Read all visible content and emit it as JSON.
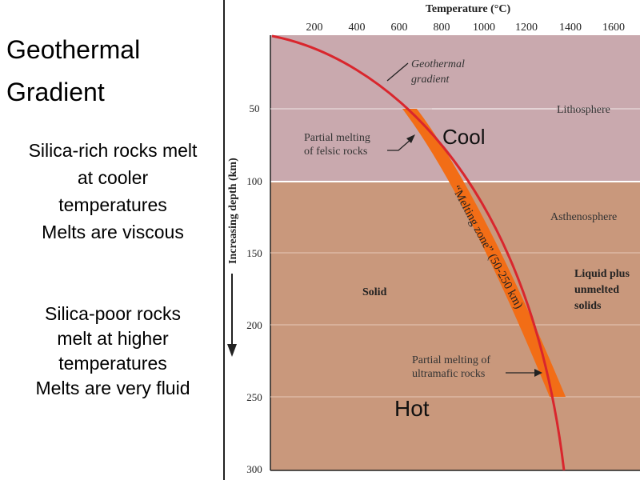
{
  "slide": {
    "title_line1": "Geothermal",
    "title_line2": "Gradient",
    "para1": [
      "Silica-rich rocks melt",
      "at cooler",
      "temperatures",
      "Melts are viscous"
    ],
    "para2": [
      "Silica-poor rocks",
      "melt at higher",
      "temperatures",
      "Melts are very fluid"
    ]
  },
  "diagram": {
    "x_axis_title": "Temperature (°C)",
    "x_ticks": [
      "200",
      "400",
      "600",
      "800",
      "1000",
      "1200",
      "1400",
      "1600"
    ],
    "y_axis_title": "Increasing depth (km)",
    "y_ticks": [
      "50",
      "100",
      "150",
      "200",
      "250",
      "300"
    ],
    "labels": {
      "geothermal_gradient_1": "Geothermal",
      "geothermal_gradient_2": "gradient",
      "lithosphere": "Lithosphere",
      "asthenosphere": "Asthenosphere",
      "partial_felsic_1": "Partial melting",
      "partial_felsic_2": "of felsic rocks",
      "melting_zone": "“Melting zone” (50-250 km)",
      "solid": "Solid",
      "liquid_1": "Liquid plus",
      "liquid_2": "unmelted",
      "liquid_3": "solids",
      "partial_ultramafic_1": "Partial melting of",
      "partial_ultramafic_2": "ultramafic rocks",
      "cool": "Cool",
      "hot": "Hot"
    },
    "colors": {
      "lithosphere": "#c9a9ae",
      "asthenosphere": "#c9987c",
      "melting_zone": "#f26d16",
      "gradient_line": "#d9262d"
    }
  }
}
